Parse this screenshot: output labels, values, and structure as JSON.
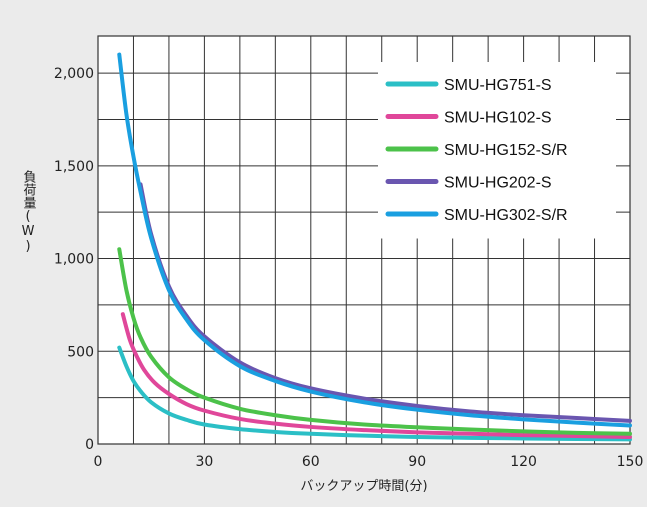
{
  "chart_data": {
    "type": "line",
    "xlabel": "バックアップ時間(分)",
    "ylabel": "負荷量(W)",
    "xlim": [
      0,
      150
    ],
    "ylim": [
      0,
      2200
    ],
    "x_ticks": [
      0,
      30,
      60,
      90,
      120,
      150
    ],
    "y_ticks": [
      0,
      500,
      1000,
      1500,
      2000
    ],
    "x_tick_labels": [
      "0",
      "30",
      "60",
      "90",
      "120",
      "150"
    ],
    "y_tick_labels": [
      "0",
      "500",
      "1,000",
      "1,500",
      "2,000"
    ],
    "grid": true,
    "legend_position": "top-right",
    "series": [
      {
        "name": "SMU-HG751-S",
        "color": "#2bbfc6",
        "points": [
          [
            6,
            520
          ],
          [
            8,
            420
          ],
          [
            10,
            340
          ],
          [
            12,
            285
          ],
          [
            15,
            225
          ],
          [
            20,
            165
          ],
          [
            25,
            130
          ],
          [
            30,
            105
          ],
          [
            40,
            80
          ],
          [
            50,
            65
          ],
          [
            60,
            55
          ],
          [
            75,
            45
          ],
          [
            90,
            38
          ],
          [
            105,
            33
          ],
          [
            120,
            30
          ],
          [
            135,
            27
          ],
          [
            150,
            25
          ]
        ]
      },
      {
        "name": "SMU-HG102-S",
        "color": "#e0479a",
        "points": [
          [
            7,
            700
          ],
          [
            9,
            560
          ],
          [
            11,
            470
          ],
          [
            13,
            400
          ],
          [
            16,
            330
          ],
          [
            20,
            270
          ],
          [
            25,
            215
          ],
          [
            30,
            180
          ],
          [
            40,
            135
          ],
          [
            50,
            110
          ],
          [
            60,
            92
          ],
          [
            75,
            75
          ],
          [
            90,
            63
          ],
          [
            105,
            55
          ],
          [
            120,
            48
          ],
          [
            135,
            43
          ],
          [
            150,
            38
          ]
        ]
      },
      {
        "name": "SMU-HG152-S/R",
        "color": "#4cc24a",
        "points": [
          [
            6,
            1050
          ],
          [
            8,
            830
          ],
          [
            10,
            680
          ],
          [
            12,
            575
          ],
          [
            15,
            470
          ],
          [
            20,
            360
          ],
          [
            25,
            295
          ],
          [
            30,
            250
          ],
          [
            40,
            190
          ],
          [
            50,
            155
          ],
          [
            60,
            130
          ],
          [
            75,
            105
          ],
          [
            90,
            90
          ],
          [
            105,
            78
          ],
          [
            120,
            68
          ],
          [
            135,
            60
          ],
          [
            150,
            55
          ]
        ]
      },
      {
        "name": "SMU-HG202-S",
        "color": "#6a56b0",
        "points": [
          [
            12,
            1400
          ],
          [
            15,
            1130
          ],
          [
            20,
            850
          ],
          [
            25,
            690
          ],
          [
            30,
            580
          ],
          [
            40,
            440
          ],
          [
            50,
            355
          ],
          [
            60,
            300
          ],
          [
            75,
            245
          ],
          [
            90,
            205
          ],
          [
            105,
            175
          ],
          [
            120,
            155
          ],
          [
            135,
            140
          ],
          [
            150,
            125
          ]
        ]
      },
      {
        "name": "SMU-HG302-S/R",
        "color": "#1a9fe0",
        "points": [
          [
            6,
            2100
          ],
          [
            8,
            1780
          ],
          [
            10,
            1550
          ],
          [
            12,
            1360
          ],
          [
            15,
            1110
          ],
          [
            20,
            830
          ],
          [
            25,
            670
          ],
          [
            30,
            560
          ],
          [
            40,
            420
          ],
          [
            50,
            340
          ],
          [
            60,
            283
          ],
          [
            75,
            225
          ],
          [
            90,
            185
          ],
          [
            105,
            155
          ],
          [
            120,
            133
          ],
          [
            135,
            115
          ],
          [
            150,
            100
          ]
        ]
      }
    ]
  }
}
